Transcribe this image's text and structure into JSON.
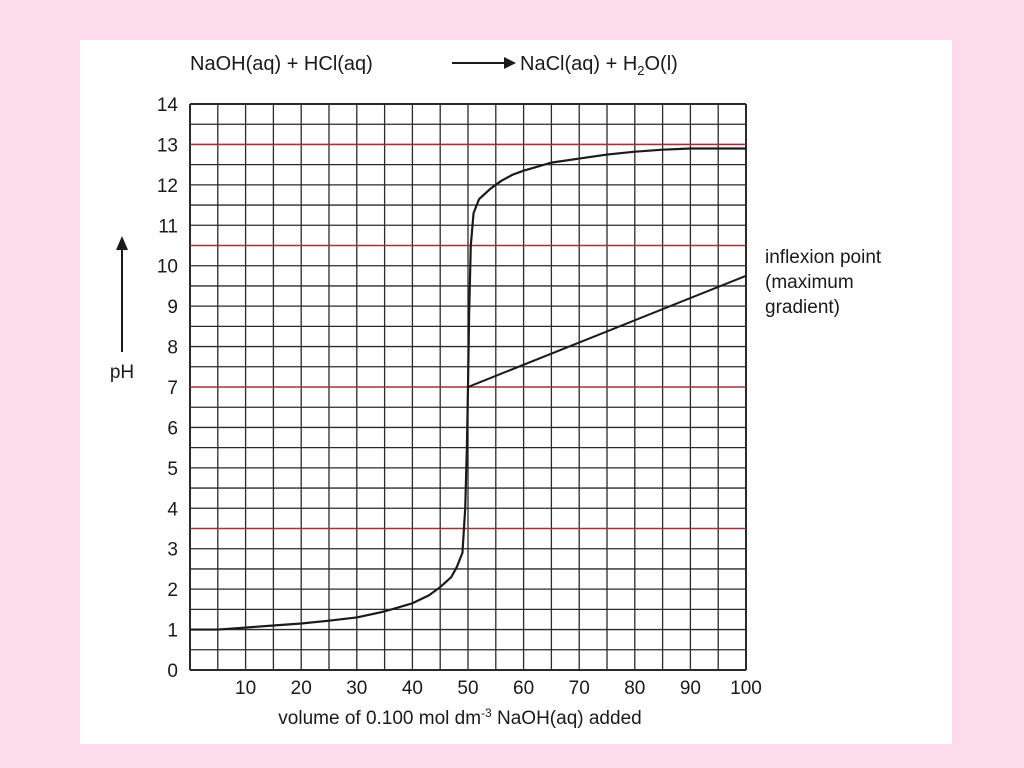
{
  "chart_data": {
    "type": "line",
    "title": {
      "left": "NaOH(aq) + HCl(aq)",
      "right_pre": "NaCl(aq) + H",
      "subscript": "2",
      "right_post": "O(l)"
    },
    "xlabel": {
      "pre": "volume of 0.100 mol dm",
      "superscript": "-3",
      "post": " NaOH(aq) added"
    },
    "ylabel": "pH",
    "xlim": [
      0,
      100
    ],
    "ylim": [
      0,
      14
    ],
    "x_ticks": [
      10,
      20,
      30,
      40,
      50,
      60,
      70,
      80,
      90,
      100
    ],
    "y_ticks": [
      0,
      1,
      2,
      3,
      4,
      5,
      6,
      7,
      8,
      9,
      10,
      11,
      12,
      13,
      14
    ],
    "grid": true,
    "series": [
      {
        "x": [
          0,
          5,
          10,
          15,
          20,
          25,
          30,
          35,
          40,
          43,
          45,
          47,
          48,
          49,
          49.5,
          49.8,
          50,
          50.2,
          50.5,
          51,
          52,
          54,
          56,
          58,
          60,
          65,
          70,
          75,
          80,
          85,
          90,
          95,
          100
        ],
        "y": [
          1.0,
          1.0,
          1.05,
          1.1,
          1.15,
          1.22,
          1.3,
          1.45,
          1.65,
          1.85,
          2.05,
          2.3,
          2.55,
          2.9,
          4.0,
          5.5,
          7.0,
          8.8,
          10.5,
          11.3,
          11.65,
          11.9,
          12.1,
          12.25,
          12.35,
          12.55,
          12.65,
          12.75,
          12.82,
          12.87,
          12.9,
          12.9,
          12.9
        ],
        "color": "#1a1a1a"
      }
    ],
    "annotation": {
      "lines": [
        "inflexion point",
        "(maximum",
        "gradient)"
      ],
      "from": {
        "x": 50,
        "y": 7.0
      },
      "to": {
        "x": 100,
        "y": 9.75
      }
    },
    "colors": {
      "grid": "#2a2a2a",
      "grid_highlight": "#a0303a",
      "curve": "#1a1a1a"
    }
  }
}
